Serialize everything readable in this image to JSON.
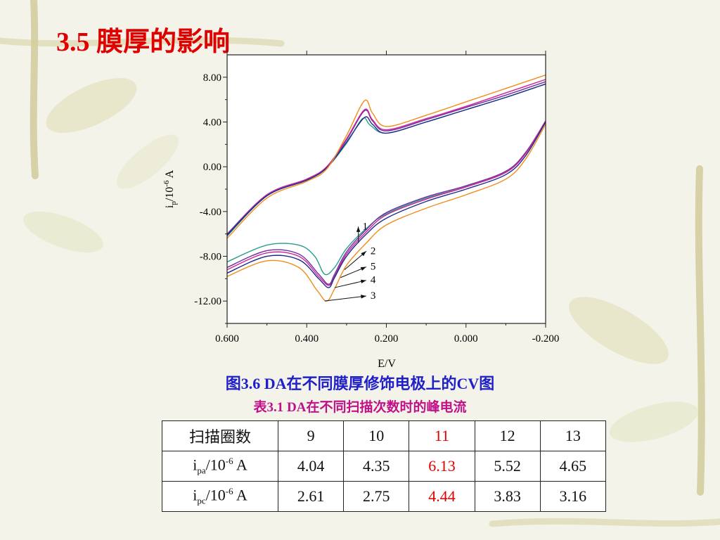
{
  "slide_title": "3.5 膜厚的影响",
  "figure_caption": "图3.6 DA在不同膜厚修饰电极上的CV图",
  "table_caption": "表3.1 DA在不同扫描次数时的峰电流",
  "colors": {
    "title": "#e00000",
    "figure_caption": "#2020c8",
    "table_caption": "#c0108a",
    "highlight": "#e00000"
  },
  "chart_data": {
    "type": "line",
    "xlabel": "E/V",
    "ylabel": {
      "base": "i",
      "sub": "p",
      "mid": "/10",
      "sup": "-6",
      "unit": " A"
    },
    "xlim": [
      0.6,
      -0.2
    ],
    "ylim": [
      -14,
      10
    ],
    "x_ticks": [
      "0.600",
      "0.400",
      "0.200",
      "0.000",
      "-0.200"
    ],
    "x_tick_values": [
      0.6,
      0.4,
      0.2,
      0.0,
      -0.2
    ],
    "y_ticks": [
      "8.00",
      "4.00",
      "0.00",
      "-4.00",
      "-8.00",
      "-12.00"
    ],
    "y_tick_values": [
      8,
      4,
      0,
      -4,
      -8,
      -12
    ],
    "annotation_labels": [
      "1",
      "2",
      "5",
      "4",
      "3"
    ],
    "series": [
      {
        "name": "1",
        "color": "#2a9d8f",
        "anodic": [
          [
            0.6,
            -6.2
          ],
          [
            0.5,
            -2.6
          ],
          [
            0.4,
            -1.2
          ],
          [
            0.35,
            -0.1
          ],
          [
            0.3,
            2.1
          ],
          [
            0.26,
            4.3
          ],
          [
            0.24,
            3.7
          ],
          [
            0.2,
            3.0
          ],
          [
            0.1,
            4.0
          ],
          [
            0.0,
            5.1
          ],
          [
            -0.1,
            6.2
          ],
          [
            -0.2,
            7.4
          ]
        ],
        "cathodic": [
          [
            -0.2,
            4.0
          ],
          [
            -0.15,
            1.2
          ],
          [
            -0.1,
            -0.5
          ],
          [
            0.0,
            -1.8
          ],
          [
            0.1,
            -2.8
          ],
          [
            0.2,
            -4.2
          ],
          [
            0.25,
            -5.5
          ],
          [
            0.3,
            -7.3
          ],
          [
            0.33,
            -9.0
          ],
          [
            0.355,
            -9.6
          ],
          [
            0.38,
            -8.0
          ],
          [
            0.42,
            -7.0
          ],
          [
            0.5,
            -7.0
          ],
          [
            0.6,
            -8.5
          ]
        ],
        "label_target": [
          0.27,
          -6.8
        ]
      },
      {
        "name": "2",
        "color": "#7030a0",
        "anodic": [
          [
            0.6,
            -6.0
          ],
          [
            0.5,
            -2.5
          ],
          [
            0.4,
            -1.1
          ],
          [
            0.35,
            0.0
          ],
          [
            0.3,
            2.4
          ],
          [
            0.255,
            5.0
          ],
          [
            0.235,
            4.1
          ],
          [
            0.2,
            3.2
          ],
          [
            0.1,
            4.2
          ],
          [
            0.0,
            5.3
          ],
          [
            -0.1,
            6.4
          ],
          [
            -0.2,
            7.6
          ]
        ],
        "cathodic": [
          [
            -0.2,
            4.1
          ],
          [
            -0.15,
            1.3
          ],
          [
            -0.1,
            -0.4
          ],
          [
            0.0,
            -1.7
          ],
          [
            0.1,
            -2.7
          ],
          [
            0.2,
            -4.1
          ],
          [
            0.25,
            -5.6
          ],
          [
            0.3,
            -7.6
          ],
          [
            0.33,
            -9.6
          ],
          [
            0.345,
            -10.5
          ],
          [
            0.37,
            -9.6
          ],
          [
            0.42,
            -7.8
          ],
          [
            0.5,
            -7.5
          ],
          [
            0.6,
            -9.0
          ]
        ],
        "label_target": [
          0.305,
          -9.2
        ]
      },
      {
        "name": "5",
        "color": "#cc2299",
        "anodic": [
          [
            0.6,
            -6.1
          ],
          [
            0.5,
            -2.5
          ],
          [
            0.4,
            -1.1
          ],
          [
            0.35,
            0.0
          ],
          [
            0.3,
            2.5
          ],
          [
            0.255,
            5.1
          ],
          [
            0.235,
            4.2
          ],
          [
            0.2,
            3.3
          ],
          [
            0.1,
            4.3
          ],
          [
            0.0,
            5.4
          ],
          [
            -0.1,
            6.6
          ],
          [
            -0.2,
            7.8
          ]
        ],
        "cathodic": [
          [
            -0.2,
            4.1
          ],
          [
            -0.15,
            1.2
          ],
          [
            -0.1,
            -0.5
          ],
          [
            0.0,
            -1.8
          ],
          [
            0.1,
            -2.9
          ],
          [
            0.2,
            -4.3
          ],
          [
            0.25,
            -5.8
          ],
          [
            0.3,
            -7.8
          ],
          [
            0.33,
            -9.8
          ],
          [
            0.345,
            -10.6
          ],
          [
            0.37,
            -9.8
          ],
          [
            0.42,
            -8.0
          ],
          [
            0.5,
            -7.7
          ],
          [
            0.6,
            -9.2
          ]
        ],
        "label_target": [
          0.315,
          -9.9
        ]
      },
      {
        "name": "4",
        "color": "#1f2a8a",
        "anodic": [
          [
            0.6,
            -6.1
          ],
          [
            0.5,
            -2.6
          ],
          [
            0.4,
            -1.2
          ],
          [
            0.35,
            -0.1
          ],
          [
            0.3,
            2.2
          ],
          [
            0.255,
            4.4
          ],
          [
            0.235,
            3.8
          ],
          [
            0.2,
            3.0
          ],
          [
            0.1,
            4.0
          ],
          [
            0.0,
            5.1
          ],
          [
            -0.1,
            6.2
          ],
          [
            -0.2,
            7.4
          ]
        ],
        "cathodic": [
          [
            -0.2,
            4.0
          ],
          [
            -0.15,
            1.0
          ],
          [
            -0.1,
            -0.7
          ],
          [
            0.0,
            -2.0
          ],
          [
            0.1,
            -3.1
          ],
          [
            0.2,
            -4.6
          ],
          [
            0.25,
            -6.0
          ],
          [
            0.3,
            -8.0
          ],
          [
            0.33,
            -9.9
          ],
          [
            0.345,
            -10.8
          ],
          [
            0.37,
            -10.0
          ],
          [
            0.42,
            -8.3
          ],
          [
            0.5,
            -8.0
          ],
          [
            0.6,
            -9.5
          ]
        ],
        "label_target": [
          0.33,
          -10.8
        ]
      },
      {
        "name": "3",
        "color": "#f08c1a",
        "anodic": [
          [
            0.6,
            -6.4
          ],
          [
            0.5,
            -2.8
          ],
          [
            0.4,
            -1.3
          ],
          [
            0.35,
            -0.2
          ],
          [
            0.3,
            2.8
          ],
          [
            0.255,
            5.9
          ],
          [
            0.235,
            4.8
          ],
          [
            0.2,
            3.6
          ],
          [
            0.1,
            4.6
          ],
          [
            0.0,
            5.8
          ],
          [
            -0.1,
            7.0
          ],
          [
            -0.2,
            8.2
          ]
        ],
        "cathodic": [
          [
            -0.2,
            3.8
          ],
          [
            -0.15,
            0.7
          ],
          [
            -0.1,
            -1.1
          ],
          [
            0.0,
            -2.5
          ],
          [
            0.1,
            -3.7
          ],
          [
            0.2,
            -5.2
          ],
          [
            0.25,
            -6.8
          ],
          [
            0.3,
            -8.8
          ],
          [
            0.33,
            -10.9
          ],
          [
            0.35,
            -12.0
          ],
          [
            0.375,
            -11.0
          ],
          [
            0.42,
            -9.0
          ],
          [
            0.5,
            -8.4
          ],
          [
            0.6,
            -9.8
          ]
        ],
        "label_target": [
          0.355,
          -12.0
        ]
      }
    ]
  },
  "table": {
    "header": [
      "扫描圈数",
      "9",
      "10",
      "11",
      "12",
      "13"
    ],
    "rows": [
      {
        "label": {
          "base": "i",
          "sub": "pa",
          "mid": "/10",
          "sup": "-6",
          "unit": " A"
        },
        "values": [
          "4.04",
          "4.35",
          "6.13",
          "5.52",
          "4.65"
        ]
      },
      {
        "label": {
          "base": "i",
          "sub": "pc",
          "mid": "/10",
          "sup": "-6",
          "unit": " A"
        },
        "values": [
          "2.61",
          "2.75",
          "4.44",
          "3.83",
          "3.16"
        ]
      }
    ]
  }
}
